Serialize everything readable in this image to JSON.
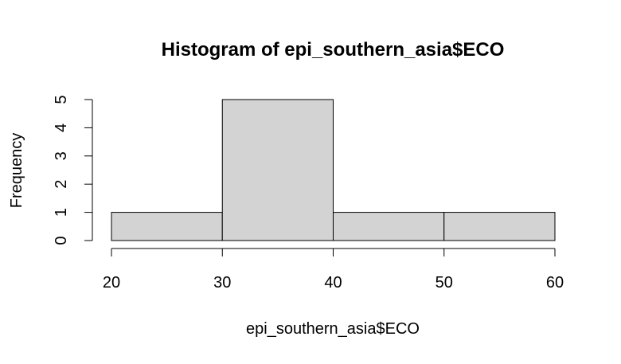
{
  "chart_data": {
    "type": "bar",
    "title": "Histogram of epi_southern_asia$ECO",
    "xlabel": "epi_southern_asia$ECO",
    "ylabel": "Frequency",
    "bins": [
      {
        "start": 20,
        "end": 30,
        "count": 1
      },
      {
        "start": 30,
        "end": 40,
        "count": 5
      },
      {
        "start": 40,
        "end": 50,
        "count": 1
      },
      {
        "start": 50,
        "end": 60,
        "count": 1
      }
    ],
    "x_ticks": [
      20,
      30,
      40,
      50,
      60
    ],
    "y_ticks": [
      0,
      1,
      2,
      3,
      4,
      5
    ],
    "xlim": [
      20,
      60
    ],
    "ylim": [
      0,
      5
    ],
    "bar_fill": "#d3d3d3",
    "bar_stroke": "#000000",
    "grid": false
  }
}
